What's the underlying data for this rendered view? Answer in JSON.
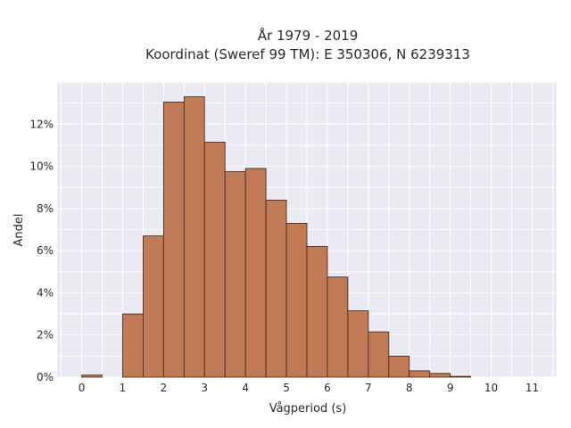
{
  "chart_data": {
    "type": "bar",
    "title_line1": "År 1979 - 2019",
    "title_line2": "Koordinat (Sweref 99 TM): E 350306, N 6239313",
    "xlabel": "Vågperiod (s)",
    "ylabel": "Andel",
    "bin_width": 0.5,
    "bins": [
      {
        "start": 0.0,
        "value": 0.1
      },
      {
        "start": 0.5,
        "value": 0.0
      },
      {
        "start": 1.0,
        "value": 3.0
      },
      {
        "start": 1.5,
        "value": 6.7
      },
      {
        "start": 2.0,
        "value": 13.05
      },
      {
        "start": 2.5,
        "value": 13.3
      },
      {
        "start": 3.0,
        "value": 11.15
      },
      {
        "start": 3.5,
        "value": 9.75
      },
      {
        "start": 4.0,
        "value": 9.9
      },
      {
        "start": 4.5,
        "value": 8.4
      },
      {
        "start": 5.0,
        "value": 7.3
      },
      {
        "start": 5.5,
        "value": 6.2
      },
      {
        "start": 6.0,
        "value": 4.75
      },
      {
        "start": 6.5,
        "value": 3.15
      },
      {
        "start": 7.0,
        "value": 2.15
      },
      {
        "start": 7.5,
        "value": 1.0
      },
      {
        "start": 8.0,
        "value": 0.3
      },
      {
        "start": 8.5,
        "value": 0.18
      },
      {
        "start": 9.0,
        "value": 0.04
      }
    ],
    "xlim": [
      -0.6,
      11.6
    ],
    "ylim": [
      0,
      14
    ],
    "x_ticks": [
      0,
      1,
      2,
      3,
      4,
      5,
      6,
      7,
      8,
      9,
      10,
      11
    ],
    "y_ticks": [
      0,
      2,
      4,
      6,
      8,
      10,
      12
    ],
    "y_tick_suffix": "%",
    "grid": true,
    "colors": {
      "bar_fill": "#c07a55",
      "bar_edge": "#3d2416",
      "plot_background": "#e9eaf2",
      "grid": "#ffffff"
    }
  }
}
